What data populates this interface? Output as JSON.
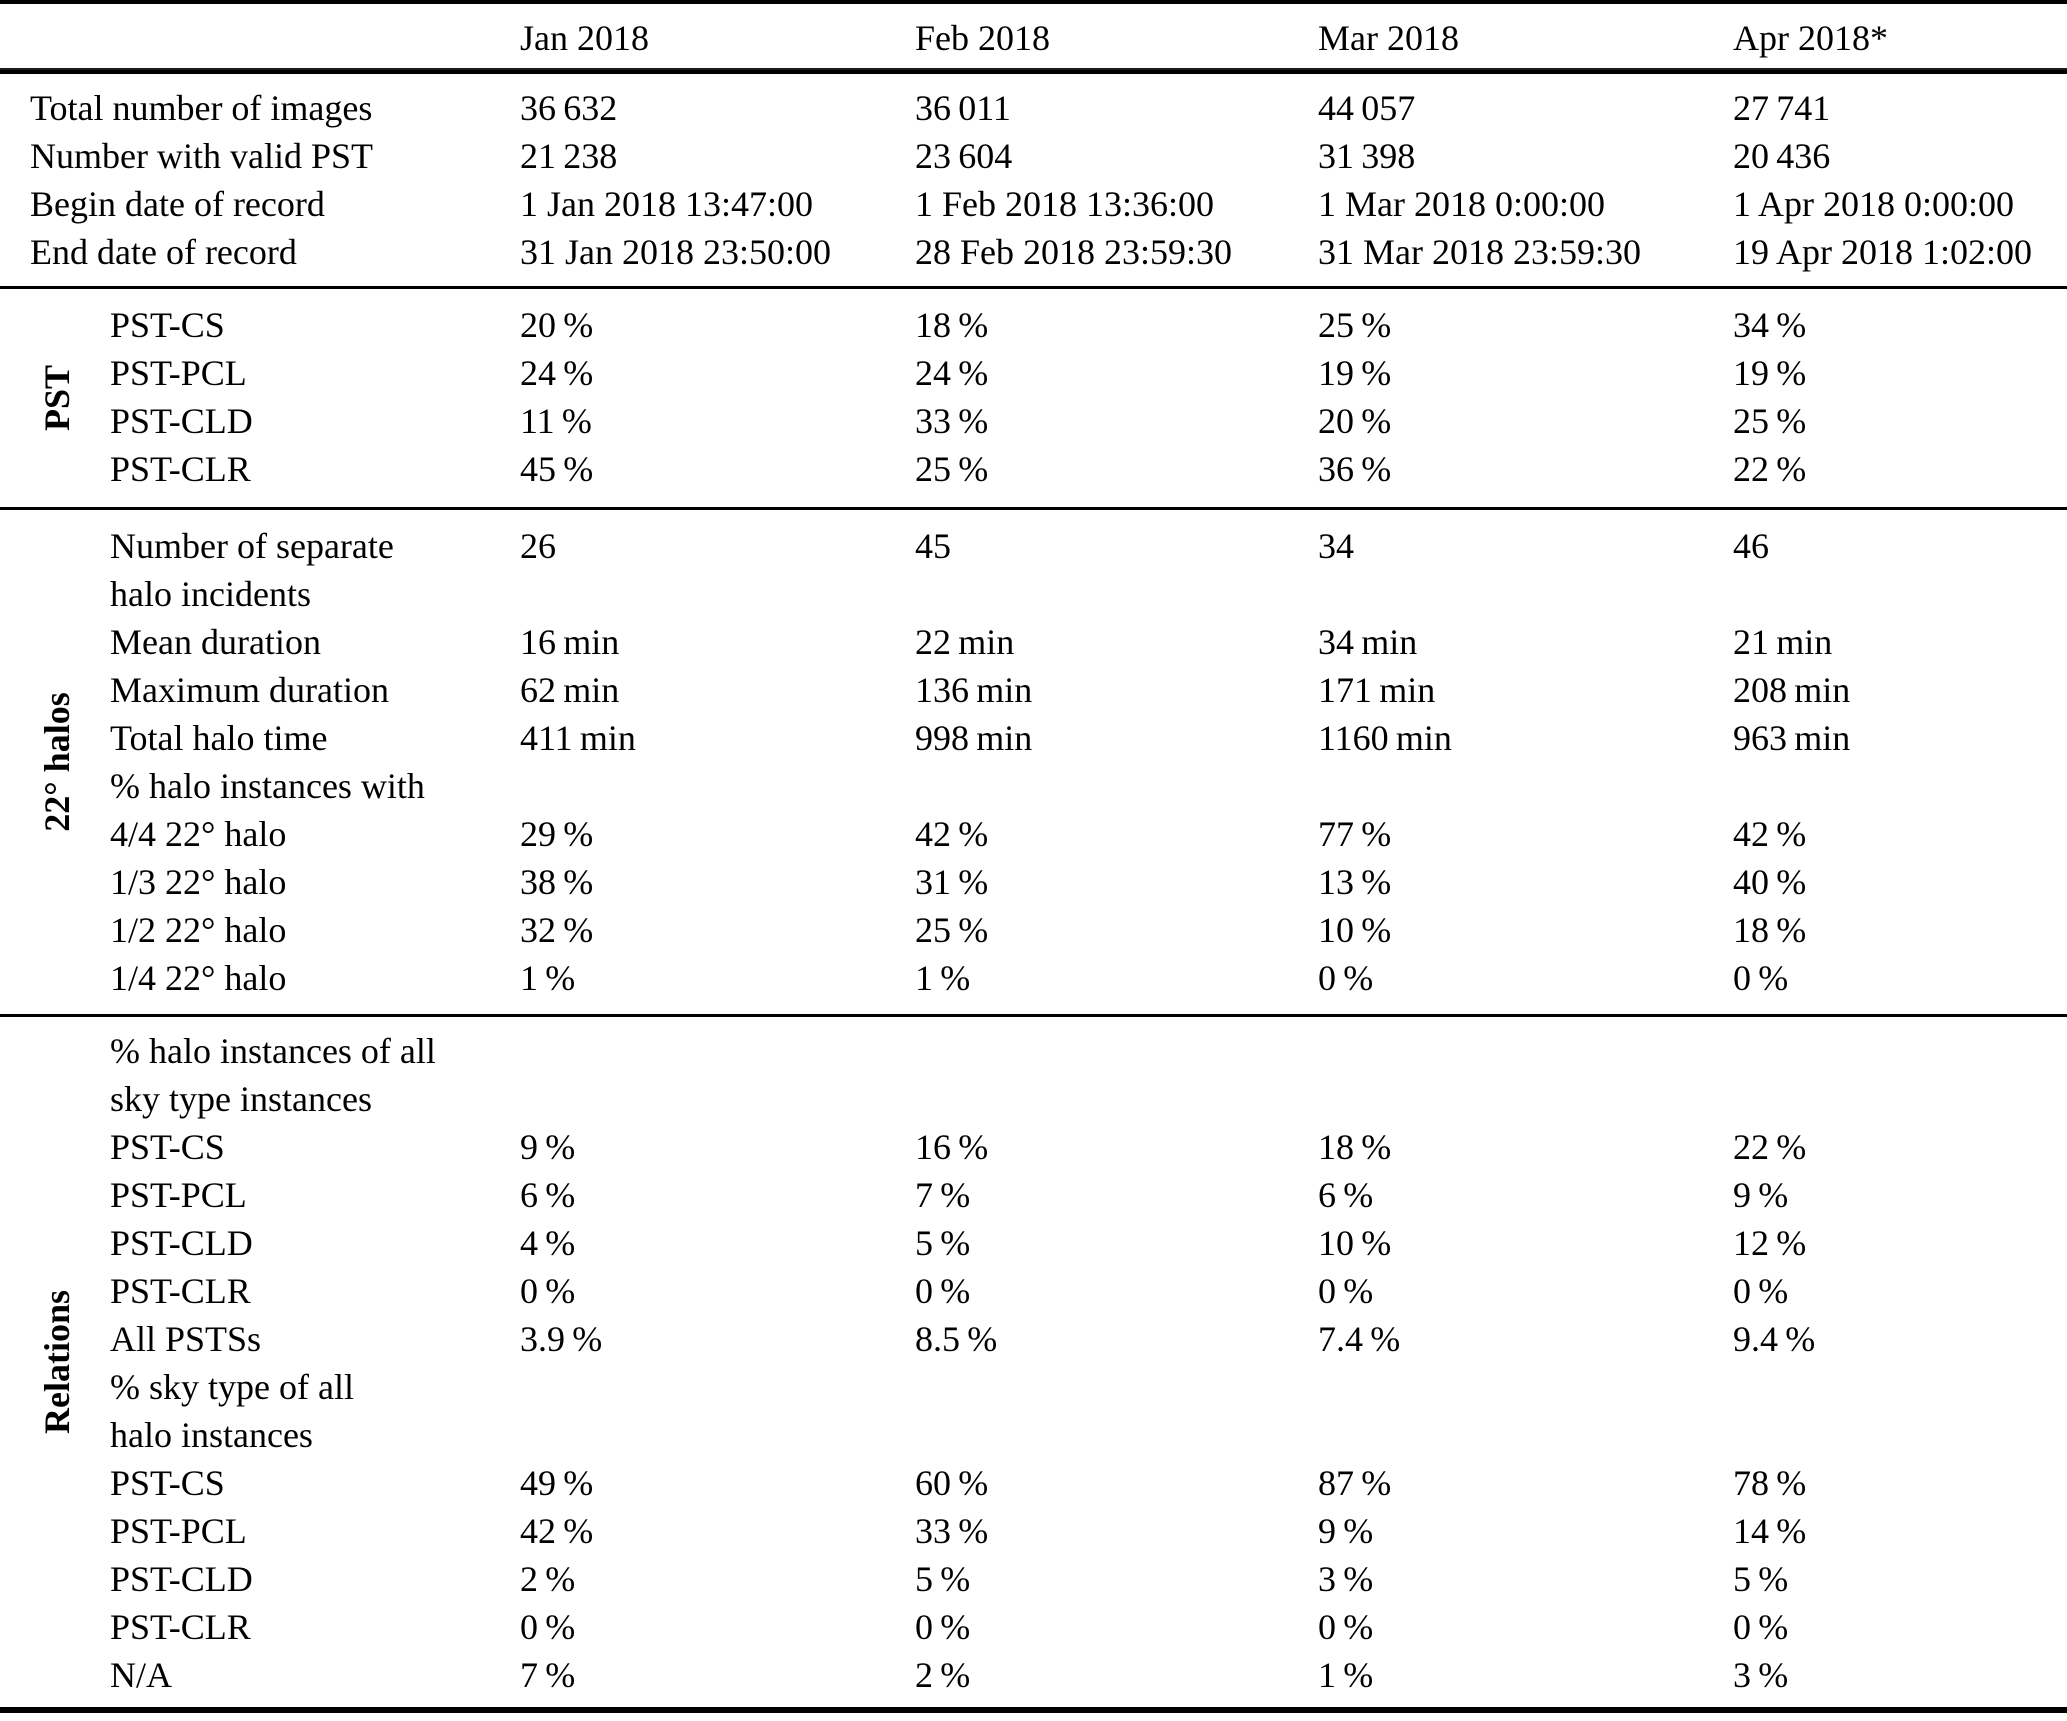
{
  "table": {
    "columns": [
      "",
      "Jan 2018",
      "Feb 2018",
      "Mar 2018",
      "Apr 2018*"
    ],
    "sections": [
      {
        "id": "overview",
        "label": "",
        "rows": [
          {
            "label_lines": [
              "Total number of images"
            ],
            "values": [
              "36 632",
              "36 011",
              "44 057",
              "27 741"
            ]
          },
          {
            "label_lines": [
              "Number with valid PST"
            ],
            "values": [
              "21 238",
              "23 604",
              "31 398",
              "20 436"
            ]
          },
          {
            "label_lines": [
              "Begin date of record"
            ],
            "values": [
              "1 Jan 2018 13:47:00",
              "1 Feb 2018 13:36:00",
              "1 Mar 2018 0:00:00",
              "1 Apr 2018 0:00:00"
            ]
          },
          {
            "label_lines": [
              "End date of record"
            ],
            "values": [
              "31 Jan 2018 23:50:00",
              "28 Feb 2018 23:59:30",
              "31 Mar 2018 23:59:30",
              "19 Apr 2018 1:02:00"
            ]
          }
        ]
      },
      {
        "id": "pst",
        "label": "PST",
        "rows": [
          {
            "label_lines": [
              "PST-CS"
            ],
            "values": [
              "20 %",
              "18 %",
              "25 %",
              "34 %"
            ]
          },
          {
            "label_lines": [
              "PST-PCL"
            ],
            "values": [
              "24 %",
              "24 %",
              "19 %",
              "19 %"
            ]
          },
          {
            "label_lines": [
              "PST-CLD"
            ],
            "values": [
              "11 %",
              "33 %",
              "20 %",
              "25 %"
            ]
          },
          {
            "label_lines": [
              "PST-CLR"
            ],
            "values": [
              "45 %",
              "25 %",
              "36 %",
              "22 %"
            ]
          }
        ]
      },
      {
        "id": "22-halos",
        "label": "22° halos",
        "rows": [
          {
            "label_lines": [
              "Number of separate",
              "halo incidents"
            ],
            "values": [
              "26",
              "45",
              "34",
              "46"
            ]
          },
          {
            "label_lines": [
              "Mean duration"
            ],
            "values": [
              "16 min",
              "22 min",
              "34 min",
              "21 min"
            ]
          },
          {
            "label_lines": [
              "Maximum duration"
            ],
            "values": [
              "62 min",
              "136 min",
              "171 min",
              "208 min"
            ]
          },
          {
            "label_lines": [
              "Total halo time"
            ],
            "values": [
              "411 min",
              "998 min",
              "1160 min",
              "963 min"
            ]
          },
          {
            "label_lines": [
              "% halo instances with"
            ],
            "values": []
          },
          {
            "label_lines": [
              "4/4 22° halo"
            ],
            "values": [
              "29 %",
              "42 %",
              "77 %",
              "42 %"
            ]
          },
          {
            "label_lines": [
              "1/3 22° halo"
            ],
            "values": [
              "38 %",
              "31 %",
              "13 %",
              "40 %"
            ]
          },
          {
            "label_lines": [
              "1/2 22° halo"
            ],
            "values": [
              "32 %",
              "25 %",
              "10 %",
              "18 %"
            ]
          },
          {
            "label_lines": [
              "1/4 22° halo"
            ],
            "values": [
              "1 %",
              "1 %",
              "0 %",
              "0 %"
            ]
          }
        ]
      },
      {
        "id": "relations",
        "label": "Relations",
        "rows": [
          {
            "label_lines": [
              "% halo instances of all",
              "sky type instances"
            ],
            "values": []
          },
          {
            "label_lines": [
              "PST-CS"
            ],
            "values": [
              "9 %",
              "16 %",
              "18 %",
              "22 %"
            ]
          },
          {
            "label_lines": [
              "PST-PCL"
            ],
            "values": [
              "6 %",
              "7 %",
              "6 %",
              "9 %"
            ]
          },
          {
            "label_lines": [
              "PST-CLD"
            ],
            "values": [
              "4 %",
              "5 %",
              "10 %",
              "12 %"
            ]
          },
          {
            "label_lines": [
              "PST-CLR"
            ],
            "values": [
              "0 %",
              "0 %",
              "0 %",
              "0 %"
            ]
          },
          {
            "label_lines": [
              "All PSTSs"
            ],
            "values": [
              "3.9 %",
              "8.5 %",
              "7.4 %",
              "9.4 %"
            ]
          },
          {
            "label_lines": [
              "% sky type of all",
              "halo instances"
            ],
            "values": []
          },
          {
            "label_lines": [
              "PST-CS"
            ],
            "values": [
              "49 %",
              "60 %",
              "87 %",
              "78 %"
            ]
          },
          {
            "label_lines": [
              "PST-PCL"
            ],
            "values": [
              "42 %",
              "33 %",
              "9 %",
              "14 %"
            ]
          },
          {
            "label_lines": [
              "PST-CLD"
            ],
            "values": [
              "2 %",
              "5 %",
              "3 %",
              "5 %"
            ]
          },
          {
            "label_lines": [
              "PST-CLR"
            ],
            "values": [
              "0 %",
              "0 %",
              "0 %",
              "0 %"
            ]
          },
          {
            "label_lines": [
              "N/A"
            ],
            "values": [
              "7 %",
              "2 %",
              "1 %",
              "3 %"
            ]
          }
        ]
      }
    ]
  }
}
